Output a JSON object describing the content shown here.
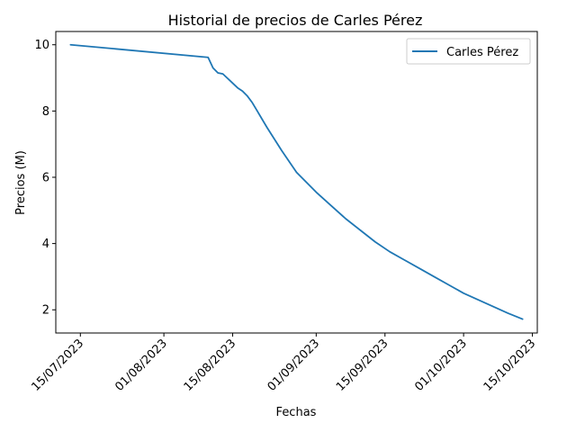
{
  "chart_data": {
    "type": "line",
    "title": "Historial de precios de Carles Pérez",
    "xlabel": "Fechas",
    "ylabel": "Precios (M)",
    "xlim": [
      "2023-07-10",
      "2023-10-16"
    ],
    "ylim": [
      1.3,
      10.4
    ],
    "x_ticks": [
      "2023-07-15",
      "2023-08-01",
      "2023-08-15",
      "2023-09-01",
      "2023-09-15",
      "2023-10-01",
      "2023-10-15"
    ],
    "x_tick_labels": [
      "15/07/2023",
      "01/08/2023",
      "15/08/2023",
      "01/09/2023",
      "15/09/2023",
      "01/10/2023",
      "15/10/2023"
    ],
    "y_ticks": [
      2,
      4,
      6,
      8,
      10
    ],
    "y_tick_labels": [
      "2",
      "4",
      "6",
      "8",
      "10"
    ],
    "legend": {
      "position": "upper right"
    },
    "grid": false,
    "series": [
      {
        "name": "Carles Pérez",
        "color": "#1f77b4",
        "points": [
          [
            "2023-07-13",
            10.0
          ],
          [
            "2023-08-10",
            9.62
          ],
          [
            "2023-08-11",
            9.3
          ],
          [
            "2023-08-12",
            9.15
          ],
          [
            "2023-08-13",
            9.12
          ],
          [
            "2023-08-14",
            8.98
          ],
          [
            "2023-08-16",
            8.7
          ],
          [
            "2023-08-17",
            8.6
          ],
          [
            "2023-08-18",
            8.45
          ],
          [
            "2023-08-19",
            8.25
          ],
          [
            "2023-08-20",
            8.0
          ],
          [
            "2023-08-22",
            7.5
          ],
          [
            "2023-08-25",
            6.8
          ],
          [
            "2023-08-28",
            6.15
          ],
          [
            "2023-09-01",
            5.55
          ],
          [
            "2023-09-04",
            5.15
          ],
          [
            "2023-09-07",
            4.75
          ],
          [
            "2023-09-10",
            4.4
          ],
          [
            "2023-09-13",
            4.05
          ],
          [
            "2023-09-16",
            3.75
          ],
          [
            "2023-09-19",
            3.5
          ],
          [
            "2023-09-22",
            3.25
          ],
          [
            "2023-09-25",
            3.0
          ],
          [
            "2023-09-28",
            2.75
          ],
          [
            "2023-10-01",
            2.5
          ],
          [
            "2023-10-04",
            2.3
          ],
          [
            "2023-10-07",
            2.1
          ],
          [
            "2023-10-10",
            1.9
          ],
          [
            "2023-10-13",
            1.72
          ]
        ]
      }
    ]
  }
}
